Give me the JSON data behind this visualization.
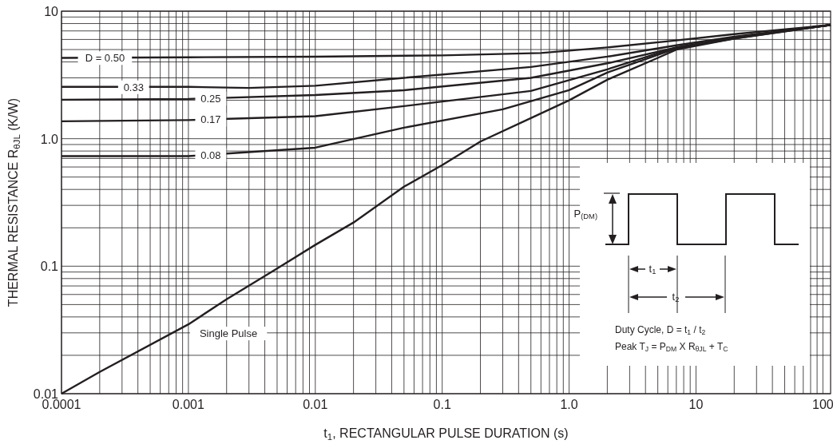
{
  "chart_data": {
    "type": "line",
    "xlabel": "t$_{1}$, RECTANGULAR PULSE DURATION (s)",
    "ylabel": "THERMAL RESISTANCE R$_{θJL}$ (K/W)",
    "log": "xy",
    "grid": true,
    "marker": "none",
    "line_style": "solid",
    "xlim": [
      0.0001,
      115
    ],
    "xticks": [
      0.0001,
      0.001,
      0.01,
      0.1,
      {
        "value": 1,
        "label": "1.0"
      },
      10,
      100
    ],
    "ylim": [
      0.01,
      10
    ],
    "yticks": [
      0.01,
      0.1,
      {
        "value": 1,
        "label": "1.0"
      },
      10
    ],
    "series": [
      {
        "name": "D = 0.50",
        "color": "#231f20",
        "x": [
          0.0001,
          0.001,
          0.01,
          0.1,
          0.6,
          2,
          7,
          20,
          115
        ],
        "values": [
          4.3,
          4.35,
          4.4,
          4.5,
          4.7,
          5.2,
          5.9,
          6.6,
          7.8
        ]
      },
      {
        "name": "0.33",
        "color": "#231f20",
        "x": [
          0.0001,
          0.001,
          0.003,
          0.01,
          0.05,
          0.5,
          2,
          7,
          20,
          115
        ],
        "values": [
          2.55,
          2.55,
          2.5,
          2.6,
          3.0,
          3.65,
          4.4,
          5.4,
          6.3,
          7.8
        ]
      },
      {
        "name": "0.25",
        "color": "#231f20",
        "x": [
          0.0001,
          0.001,
          0.01,
          0.05,
          0.5,
          2,
          7,
          20,
          115
        ],
        "values": [
          2.02,
          2.05,
          2.2,
          2.4,
          3.0,
          3.9,
          5.2,
          6.2,
          7.8
        ]
      },
      {
        "name": "0.17",
        "color": "#231f20",
        "x": [
          0.0001,
          0.001,
          0.01,
          0.05,
          0.5,
          2,
          7,
          20,
          115
        ],
        "values": [
          1.37,
          1.4,
          1.5,
          1.8,
          2.37,
          3.5,
          5.2,
          6.2,
          7.8
        ]
      },
      {
        "name": "0.08",
        "color": "#231f20",
        "x": [
          0.0001,
          0.001,
          0.01,
          0.05,
          0.3,
          1,
          2,
          7,
          20,
          115
        ],
        "values": [
          0.73,
          0.73,
          0.85,
          1.22,
          1.7,
          2.4,
          3.3,
          5.1,
          6.1,
          7.8
        ]
      },
      {
        "name": "Single Pulse",
        "color": "#231f20",
        "x": [
          0.0001,
          0.0002,
          0.001,
          0.002,
          0.005,
          0.01,
          0.02,
          0.05,
          0.1,
          0.2,
          0.5,
          1,
          2,
          5,
          7,
          20,
          115
        ],
        "values": [
          0.01,
          0.0148,
          0.035,
          0.055,
          0.096,
          0.147,
          0.22,
          0.42,
          0.62,
          0.95,
          1.45,
          2.0,
          2.9,
          4.3,
          5.0,
          6.1,
          7.8
        ]
      }
    ],
    "annotations": [
      "P$_{(DM)}$",
      "t$_{1}$",
      "t$_{2}$",
      "Duty Cycle, D = t$_{1}$ / t$_{2}$",
      "Peak T$_{J}$ = P$_{DM}$ X R$_{θJL}$ + T$_{C}$"
    ]
  }
}
